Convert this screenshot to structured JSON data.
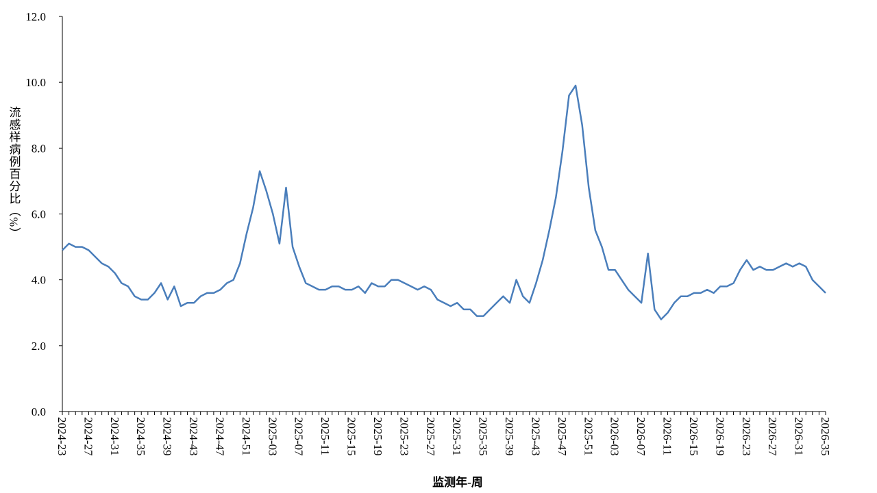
{
  "chart_data": {
    "type": "line",
    "x_label": "监测年-周",
    "y_label": "流感样病例百分比（%）",
    "categories": [
      "2024-23",
      null,
      null,
      null,
      "2024-27",
      null,
      null,
      null,
      "2024-31",
      null,
      null,
      null,
      "2024-35",
      null,
      null,
      null,
      "2024-39",
      null,
      null,
      null,
      "2024-43",
      null,
      null,
      null,
      "2024-47",
      null,
      null,
      null,
      "2024-51",
      null,
      null,
      null,
      "2025-03",
      null,
      null,
      null,
      "2025-07",
      null,
      null,
      null,
      "2025-11",
      null,
      null,
      null,
      "2025-15",
      null,
      null,
      null,
      "2025-19",
      null,
      null,
      null,
      "2025-23",
      null,
      null,
      null,
      "2025-27",
      null,
      null,
      null,
      "2025-31",
      null,
      null,
      null,
      "2025-35",
      null,
      null,
      null,
      "2025-39",
      null,
      null,
      null,
      "2025-43",
      null,
      null,
      null,
      "2025-47",
      null,
      null,
      null,
      "2025-51",
      null,
      null,
      null,
      "2026-03",
      null,
      null,
      null,
      "2026-07",
      null,
      null,
      null,
      "2026-11",
      null,
      null,
      null,
      "2026-15",
      null,
      null,
      null,
      "2026-19",
      null,
      null,
      null,
      "2026-23",
      null,
      null,
      null,
      "2026-27",
      null,
      null,
      null,
      "2026-31",
      null,
      null,
      null,
      "2026-35"
    ],
    "series": [
      {
        "color": "#4a7ebb",
        "values": [
          4.9,
          5.1,
          5.0,
          5.0,
          4.9,
          4.7,
          4.5,
          4.4,
          4.2,
          3.9,
          3.8,
          3.5,
          3.4,
          3.4,
          3.6,
          3.9,
          3.4,
          3.8,
          3.2,
          3.3,
          3.3,
          3.5,
          3.6,
          3.6,
          3.7,
          3.9,
          4.0,
          4.5,
          5.4,
          6.2,
          7.3,
          6.7,
          6.0,
          5.1,
          6.8,
          5.0,
          4.4,
          3.9,
          3.8,
          3.7,
          3.7,
          3.8,
          3.8,
          3.7,
          3.7,
          3.8,
          3.6,
          3.9,
          3.8,
          3.8,
          4.0,
          4.0,
          3.9,
          3.8,
          3.7,
          3.8,
          3.7,
          3.4,
          3.3,
          3.2,
          3.3,
          3.1,
          3.1,
          2.9,
          2.9,
          3.1,
          3.3,
          3.5,
          3.3,
          4.0,
          3.5,
          3.3,
          3.9,
          4.6,
          5.5,
          6.5,
          7.9,
          9.6,
          9.9,
          8.7,
          6.8,
          5.5,
          5.0,
          4.3,
          4.3,
          4.0,
          3.7,
          3.5,
          3.3,
          4.8,
          3.1,
          2.8,
          3.0,
          3.3,
          3.5,
          3.5,
          3.6,
          3.6,
          3.7,
          3.6,
          3.8,
          3.8,
          3.9,
          4.3,
          4.6,
          4.3,
          4.4,
          4.3,
          4.3,
          4.4,
          4.5,
          4.4,
          4.5,
          4.4,
          4.0,
          3.8,
          3.6
        ]
      }
    ],
    "ylim": [
      0,
      12
    ],
    "yticks": [
      {
        "value": 0,
        "label": "0.0"
      },
      {
        "value": 2,
        "label": "2.0"
      },
      {
        "value": 4,
        "label": "4.0"
      },
      {
        "value": 6,
        "label": "6.0"
      },
      {
        "value": 8,
        "label": "8.0"
      },
      {
        "value": 10,
        "label": "10.0"
      },
      {
        "value": 12,
        "label": "12.0"
      }
    ]
  }
}
